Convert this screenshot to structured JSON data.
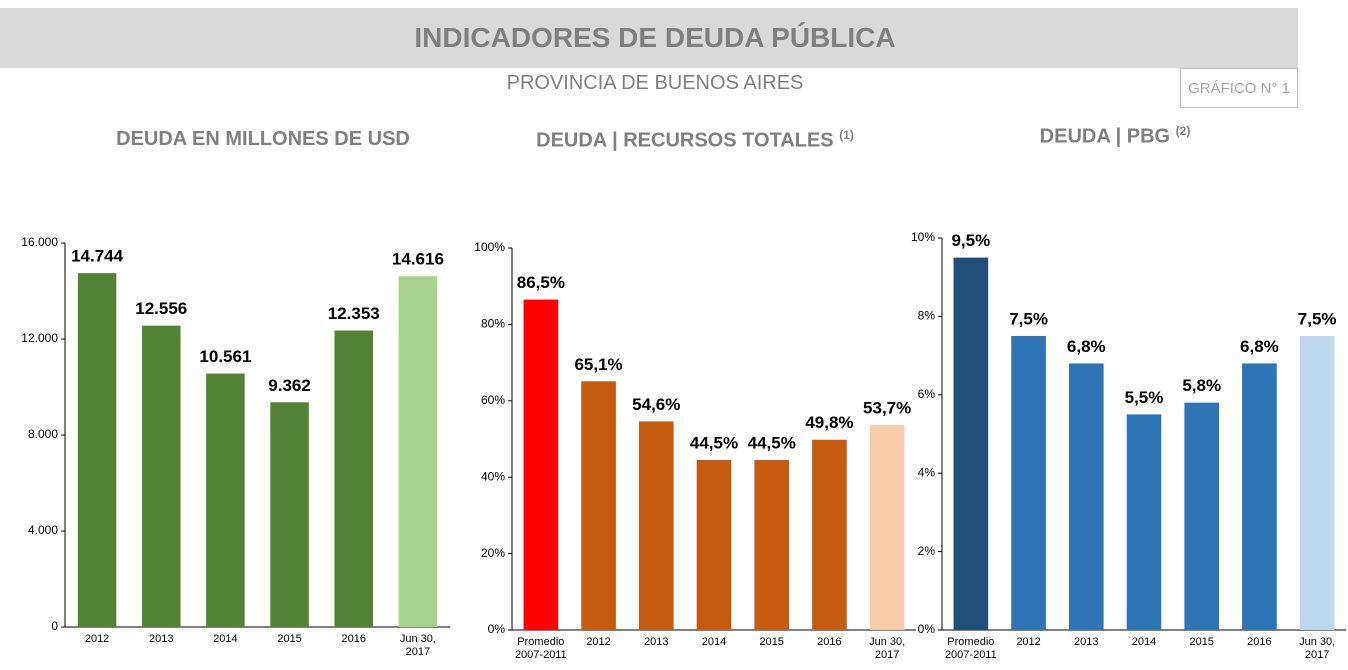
{
  "header": {
    "title": "INDICADORES DE DEUDA PÚBLICA",
    "subtitle": "PROVINCIA DE BUENOS AIRES",
    "badge": "GRÁFICO N° 1"
  },
  "chart_data": [
    {
      "type": "bar",
      "title": "DEUDA EN MILLONES DE USD",
      "categories": [
        "2012",
        "2013",
        "2014",
        "2015",
        "2016",
        "Jun 30, 2017"
      ],
      "values": [
        14744,
        12556,
        10561,
        9362,
        12353,
        14616
      ],
      "value_labels": [
        "14.744",
        "12.556",
        "10.561",
        "9.362",
        "12.353",
        "14.616"
      ],
      "colors": [
        "#548235",
        "#548235",
        "#548235",
        "#548235",
        "#548235",
        "#a9d18e"
      ],
      "ylim": [
        0,
        16000
      ],
      "yticks": [
        0,
        {
          "value": 4000,
          "label": "4.000"
        },
        {
          "value": 8000,
          "label": "8.000"
        },
        {
          "value": 12000,
          "label": "12.000"
        },
        {
          "value": 16000,
          "label": "16.000"
        }
      ],
      "grid": false
    },
    {
      "type": "bar",
      "title": "DEUDA | RECURSOS TOTALES",
      "title_note": "(1)",
      "categories": [
        "Promedio 2007-2011",
        "2012",
        "2013",
        "2014",
        "2015",
        "2016",
        "Jun 30, 2017"
      ],
      "values": [
        86.5,
        65.1,
        54.6,
        44.5,
        44.5,
        49.8,
        53.7
      ],
      "value_labels": [
        "86,5%",
        "65,1%",
        "54,6%",
        "44,5%",
        "44,5%",
        "49,8%",
        "53,7%"
      ],
      "colors": [
        "#ff0000",
        "#c55a11",
        "#c55a11",
        "#c55a11",
        "#c55a11",
        "#c55a11",
        "#f8cbad"
      ],
      "ylim": [
        0,
        100
      ],
      "yticks": [
        {
          "value": 0,
          "label": "0%"
        },
        {
          "value": 20,
          "label": "20%"
        },
        {
          "value": 40,
          "label": "40%"
        },
        {
          "value": 60,
          "label": "60%"
        },
        {
          "value": 80,
          "label": "80%"
        },
        {
          "value": 100,
          "label": "100%"
        }
      ],
      "grid": false
    },
    {
      "type": "bar",
      "title": "DEUDA | PBG",
      "title_note": "(2)",
      "categories": [
        "Promedio 2007-2011",
        "2012",
        "2013",
        "2014",
        "2015",
        "2016",
        "Jun 30, 2017"
      ],
      "values": [
        9.5,
        7.5,
        6.8,
        5.5,
        5.8,
        6.8,
        7.5
      ],
      "value_labels": [
        "9,5%",
        "7,5%",
        "6,8%",
        "5,5%",
        "5,8%",
        "6,8%",
        "7,5%"
      ],
      "colors": [
        "#1f4e79",
        "#2e75b6",
        "#2e75b6",
        "#2e75b6",
        "#2e75b6",
        "#2e75b6",
        "#bdd7ee"
      ],
      "ylim": [
        0,
        10
      ],
      "yticks": [
        {
          "value": 0,
          "label": "0%"
        },
        {
          "value": 2,
          "label": "2%"
        },
        {
          "value": 4,
          "label": "4%"
        },
        {
          "value": 6,
          "label": "6%"
        },
        {
          "value": 8,
          "label": "8%"
        },
        {
          "value": 10,
          "label": "10%"
        }
      ],
      "grid": false
    }
  ]
}
